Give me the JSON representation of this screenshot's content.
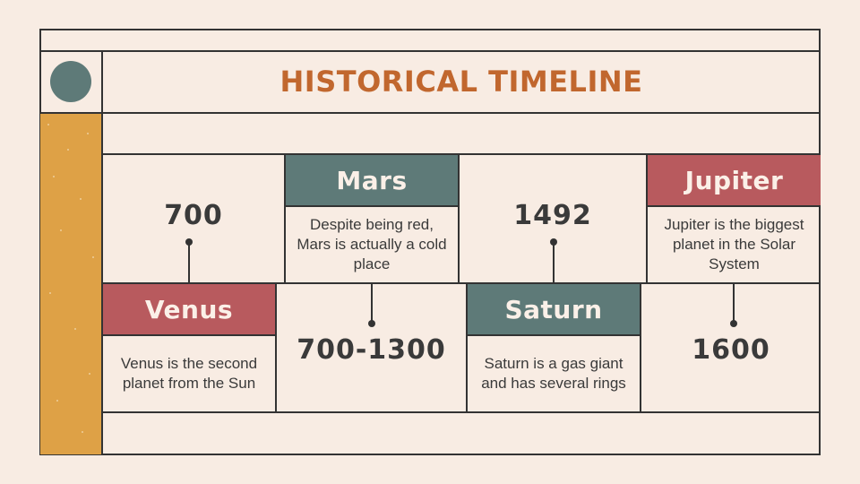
{
  "title": "HISTORICAL TIMELINE",
  "colors": {
    "background": "#f8ece3",
    "title": "#c1672e",
    "teal": "#5e7a78",
    "red": "#b85a5e",
    "orange": "#dea146",
    "line": "#333333"
  },
  "timeline": {
    "top": [
      {
        "year": "700"
      },
      {
        "name": "Mars",
        "description": "Despite being red, Mars is actually a cold place"
      },
      {
        "year": "1492"
      },
      {
        "name": "Jupiter",
        "description": "Jupiter is the biggest planet in the Solar System"
      }
    ],
    "bottom": [
      {
        "name": "Venus",
        "description": "Venus is the second planet from the Sun"
      },
      {
        "year": "700-1300"
      },
      {
        "name": "Saturn",
        "description": "Saturn is a gas giant and has several rings"
      },
      {
        "year": "1600"
      }
    ]
  }
}
